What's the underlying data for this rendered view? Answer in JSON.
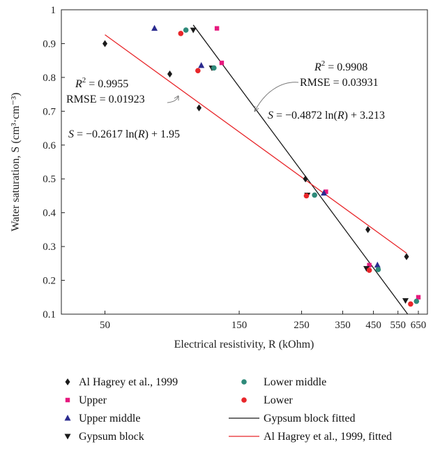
{
  "chart_data": {
    "type": "scatter",
    "xscale": "log",
    "xlim": [
      35,
      700
    ],
    "ylim": [
      0.1,
      1.0
    ],
    "xticks": [
      50,
      150,
      250,
      350,
      450,
      550,
      650
    ],
    "yticks": [
      0.1,
      0.2,
      0.3,
      0.4,
      0.5,
      0.6,
      0.7,
      0.8,
      0.9,
      1.0
    ],
    "xtick_labels": [
      "50",
      "150",
      "250",
      "350",
      "450",
      "550",
      "650"
    ],
    "ytick_labels": [
      "0.1",
      "0.2",
      "0.3",
      "0.4",
      "0.5",
      "0.6",
      "0.7",
      "0.8",
      "0.9",
      "1"
    ],
    "xlabel": "Electrical resistivity, R (kOhm)",
    "ylabel": "Water saturation, S (cm³·cm⁻³)",
    "grid": false,
    "legend_position": "bottom",
    "series": [
      {
        "name": "Al Hagrey et al., 1999",
        "marker": "diamond",
        "color": "#1a1a1a",
        "points": [
          [
            50,
            0.9
          ],
          [
            85,
            0.81
          ],
          [
            108,
            0.71
          ],
          [
            258,
            0.5
          ],
          [
            430,
            0.35
          ],
          [
            590,
            0.27
          ]
        ]
      },
      {
        "name": "Upper",
        "marker": "square",
        "color": "#e6197e",
        "points": [
          [
            125,
            0.945
          ],
          [
            130,
            0.843
          ],
          [
            305,
            0.462
          ],
          [
            435,
            0.245
          ],
          [
            650,
            0.15
          ]
        ]
      },
      {
        "name": "Upper middle",
        "marker": "triangle-up",
        "color": "#2b2b8f",
        "points": [
          [
            75,
            0.945
          ],
          [
            110,
            0.835
          ],
          [
            300,
            0.458
          ],
          [
            465,
            0.245
          ]
        ]
      },
      {
        "name": "Gypsum block",
        "marker": "triangle-down",
        "color": "#1a1a1a",
        "points": [
          [
            103,
            0.94
          ],
          [
            120,
            0.828
          ],
          [
            262,
            0.452
          ],
          [
            425,
            0.235
          ],
          [
            585,
            0.14
          ]
        ]
      },
      {
        "name": "Lower middle",
        "marker": "circle",
        "color": "#2e8a7a",
        "points": [
          [
            97,
            0.94
          ],
          [
            122,
            0.828
          ],
          [
            278,
            0.452
          ],
          [
            468,
            0.232
          ],
          [
            640,
            0.138
          ]
        ]
      },
      {
        "name": "Lower",
        "marker": "circle",
        "color": "#e8262a",
        "points": [
          [
            93,
            0.93
          ],
          [
            107,
            0.82
          ],
          [
            260,
            0.45
          ],
          [
            435,
            0.23
          ],
          [
            610,
            0.13
          ]
        ]
      }
    ],
    "fits": [
      {
        "name": "Gypsum block fitted",
        "color": "#1a1a1a",
        "slope": -0.4872,
        "intercept": 3.213,
        "x_range": [
          103,
          640
        ]
      },
      {
        "name": "Al Hagrey et al., 1999, fitted",
        "color": "#e8262a",
        "slope": -0.2617,
        "intercept": 1.95,
        "x_range": [
          50,
          590
        ]
      }
    ],
    "annotations": {
      "red_r2_prefix": "R",
      "red_r2_sup": "2",
      "red_r2_value": " = 0.9955",
      "red_rmse": "RMSE = 0.01923",
      "red_eq_prefix": "S",
      "red_eq_mid": " = −0.2617 ln(",
      "red_eq_var": "R",
      "red_eq_suffix": ") + 1.95",
      "black_r2_prefix": "R",
      "black_r2_sup": "2",
      "black_r2_value": " = 0.9908",
      "black_rmse": "RMSE = 0.03931",
      "black_eq_prefix": "S",
      "black_eq_mid": " = −0.4872 ln(",
      "black_eq_var": "R",
      "black_eq_suffix": ") + 3.213"
    }
  }
}
